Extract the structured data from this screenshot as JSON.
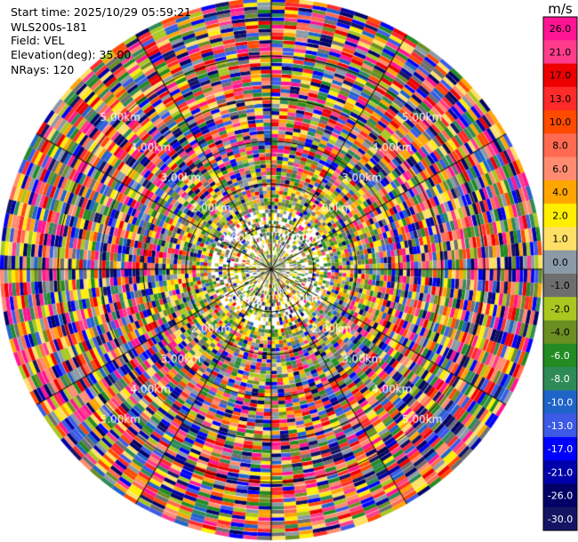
{
  "header": {
    "start_time": "Start time: 2025/10/29 05:59:21",
    "station": "WLS200s-181",
    "field": "Field: VEL",
    "elevation": "Elevation(deg): 35.00",
    "nrays": "NRays: 120"
  },
  "chart_data": {
    "type": "polar-ppi",
    "field": "VEL",
    "unit": "m/s",
    "elevation_deg": 35.0,
    "n_rays": 120,
    "range_rings_km": [
      1.0,
      2.0,
      3.0,
      4.0,
      5.0
    ],
    "range_ring_labels": [
      "1.00km",
      "2.00km",
      "3.00km",
      "4.00km",
      "5.00km"
    ],
    "colorbar": {
      "label": "m/s",
      "ticks": [
        "26.0",
        "21.0",
        "17.0",
        "13.0",
        "10.0",
        "8.0",
        "6.0",
        "4.0",
        "2.0",
        "1.0",
        "0.0",
        "-1.0",
        "-2.0",
        "-4.0",
        "-6.0",
        "-8.0",
        "-10.0",
        "-13.0",
        "-17.0",
        "-21.0",
        "-26.0",
        "-30.0"
      ],
      "colors": [
        "#ff1493",
        "#ff3c8c",
        "#ee0000",
        "#ff2a2a",
        "#ff4a00",
        "#ff6a50",
        "#ff8c70",
        "#ffa500",
        "#ffee00",
        "#ffe066",
        "#8a9aa6",
        "#6e6e6e",
        "#a8c820",
        "#6b8e23",
        "#228b22",
        "#2e8b57",
        "#1e64c8",
        "#3c5ae6",
        "#0000ff",
        "#0000aa",
        "#000066",
        "#141464"
      ]
    }
  }
}
